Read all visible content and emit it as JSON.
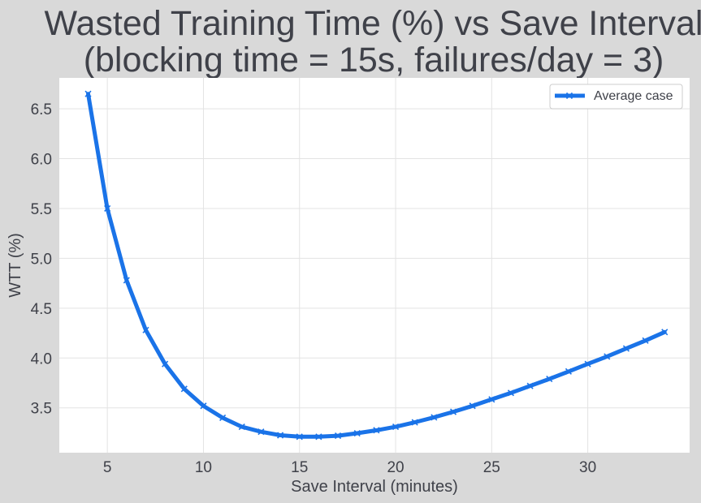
{
  "chart_data": {
    "type": "line",
    "title": "Wasted Training Time (%) vs Save Interval",
    "subtitle": "(blocking time = 15s, failures/day = 3)",
    "xlabel": "Save Interval (minutes)",
    "ylabel": "WTT (%)",
    "xlim": [
      2.5,
      35.3
    ],
    "ylim": [
      3.05,
      6.81
    ],
    "xticks": [
      5,
      10,
      15,
      20,
      25,
      30
    ],
    "yticks": [
      3.5,
      4.0,
      4.5,
      5.0,
      5.5,
      6.0,
      6.5
    ],
    "grid": true,
    "legend_position": "top-right",
    "series": [
      {
        "name": "Average case",
        "color": "#1a73e8",
        "marker": "x",
        "x": [
          4,
          5,
          6,
          7,
          8,
          9,
          10,
          11,
          12,
          13,
          14,
          15,
          16,
          17,
          18,
          19,
          20,
          21,
          22,
          23,
          24,
          25,
          26,
          27,
          28,
          29,
          30,
          31,
          32,
          33,
          34
        ],
        "y": [
          6.65,
          5.5,
          4.78,
          4.28,
          3.94,
          3.69,
          3.52,
          3.4,
          3.31,
          3.26,
          3.225,
          3.21,
          3.21,
          3.22,
          3.245,
          3.275,
          3.31,
          3.355,
          3.405,
          3.46,
          3.52,
          3.585,
          3.65,
          3.72,
          3.79,
          3.865,
          3.94,
          4.015,
          4.095,
          4.175,
          4.26
        ]
      }
    ]
  }
}
